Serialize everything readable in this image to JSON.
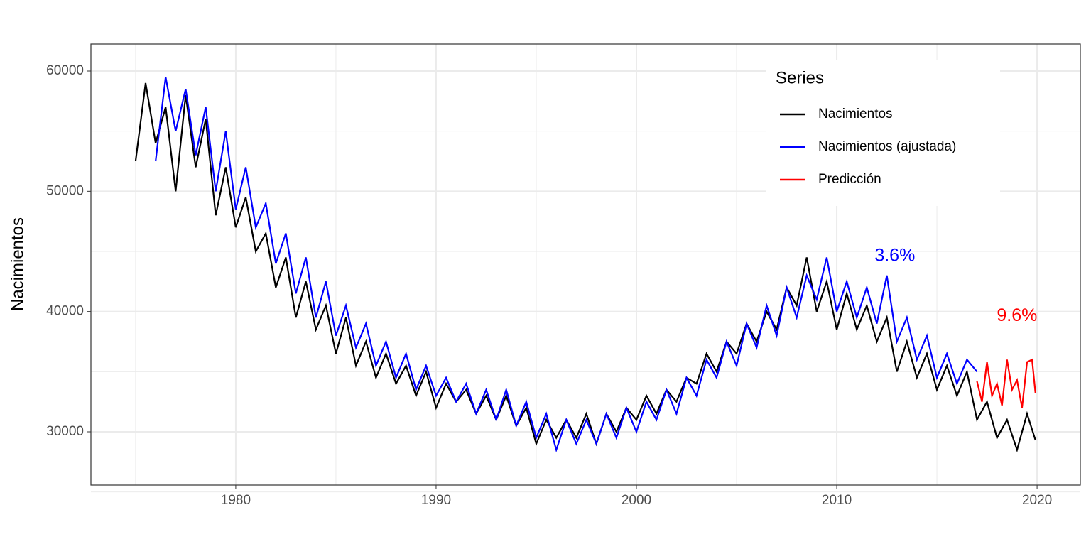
{
  "chart_data": {
    "type": "line",
    "ylabel": "Nacimientos",
    "xlim": [
      1972.77,
      2022.16
    ],
    "xticks": [
      1980,
      1990,
      2000,
      2010,
      2020
    ],
    "ylim": [
      25570,
      62244
    ],
    "yticks": [
      30000,
      40000,
      50000,
      60000
    ],
    "grid": true,
    "legend_title": "Series",
    "legend_position": "top-right",
    "series": [
      {
        "name": "Nacimientos",
        "color": "#000000",
        "x": [
          1975,
          1975.5,
          1976,
          1976.5,
          1977,
          1977.5,
          1978,
          1978.5,
          1979,
          1979.5,
          1980,
          1980.5,
          1981,
          1981.5,
          1982,
          1982.5,
          1983,
          1983.5,
          1984,
          1984.5,
          1985,
          1985.5,
          1986,
          1986.5,
          1987,
          1987.5,
          1988,
          1988.5,
          1989,
          1989.5,
          1990,
          1990.5,
          1991,
          1991.5,
          1992,
          1992.5,
          1993,
          1993.5,
          1994,
          1994.5,
          1995,
          1995.5,
          1996,
          1996.5,
          1997,
          1997.5,
          1998,
          1998.5,
          1999,
          1999.5,
          2000,
          2000.5,
          2001,
          2001.5,
          2002,
          2002.5,
          2003,
          2003.5,
          2004,
          2004.5,
          2005,
          2005.5,
          2006,
          2006.5,
          2007,
          2007.5,
          2008,
          2008.5,
          2009,
          2009.5,
          2010,
          2010.5,
          2011,
          2011.5,
          2012,
          2012.5,
          2013,
          2013.5,
          2014,
          2014.5,
          2015,
          2015.5,
          2016,
          2016.5,
          2017,
          2017.5,
          2018,
          2018.5,
          2019,
          2019.5,
          2019.92
        ],
        "values": [
          52500,
          59000,
          54000,
          57000,
          50000,
          58000,
          52000,
          56000,
          48000,
          52000,
          47000,
          49500,
          45000,
          46500,
          42000,
          44500,
          39500,
          42500,
          38500,
          40500,
          36500,
          39500,
          35500,
          37500,
          34500,
          36500,
          34000,
          35500,
          33000,
          35000,
          32000,
          34000,
          32500,
          33500,
          31500,
          33000,
          31000,
          33000,
          30500,
          32000,
          29000,
          31000,
          29500,
          31000,
          29500,
          31500,
          29000,
          31500,
          30000,
          32000,
          31000,
          33000,
          31500,
          33500,
          32500,
          34500,
          34000,
          36500,
          35000,
          37500,
          36500,
          39000,
          37500,
          40000,
          38500,
          42000,
          40500,
          44500,
          40000,
          42500,
          38500,
          41500,
          38500,
          40500,
          37500,
          39500,
          35000,
          37500,
          34500,
          36500,
          33500,
          35500,
          33000,
          35000,
          31000,
          32500,
          29500,
          31000,
          28500,
          31500,
          29300
        ]
      },
      {
        "name": "Nacimientos (ajustada)",
        "color": "#0000ff",
        "x": [
          1976,
          1976.5,
          1977,
          1977.5,
          1978,
          1978.5,
          1979,
          1979.5,
          1980,
          1980.5,
          1981,
          1981.5,
          1982,
          1982.5,
          1983,
          1983.5,
          1984,
          1984.5,
          1985,
          1985.5,
          1986,
          1986.5,
          1987,
          1987.5,
          1988,
          1988.5,
          1989,
          1989.5,
          1990,
          1990.5,
          1991,
          1991.5,
          1992,
          1992.5,
          1993,
          1993.5,
          1994,
          1994.5,
          1995,
          1995.5,
          1996,
          1996.5,
          1997,
          1997.5,
          1998,
          1998.5,
          1999,
          1999.5,
          2000,
          2000.5,
          2001,
          2001.5,
          2002,
          2002.5,
          2003,
          2003.5,
          2004,
          2004.5,
          2005,
          2005.5,
          2006,
          2006.5,
          2007,
          2007.5,
          2008,
          2008.5,
          2009,
          2009.5,
          2010,
          2010.5,
          2011,
          2011.5,
          2012,
          2012.5,
          2013,
          2013.5,
          2014,
          2014.5,
          2015,
          2015.5,
          2016,
          2016.5,
          2017
        ],
        "values": [
          52500,
          59500,
          55000,
          58500,
          53000,
          57000,
          50000,
          55000,
          48500,
          52000,
          47000,
          49000,
          44000,
          46500,
          41500,
          44500,
          39500,
          42500,
          38000,
          40500,
          37000,
          39000,
          35500,
          37500,
          34500,
          36500,
          33500,
          35500,
          33000,
          34500,
          32500,
          34000,
          31500,
          33500,
          31000,
          33500,
          30500,
          32500,
          29500,
          31500,
          28500,
          31000,
          29000,
          31000,
          29000,
          31500,
          29500,
          32000,
          30000,
          32500,
          31000,
          33500,
          31500,
          34500,
          33000,
          36000,
          34500,
          37500,
          35500,
          39000,
          37000,
          40500,
          38000,
          42000,
          39500,
          43000,
          41000,
          44500,
          40000,
          42500,
          39500,
          42000,
          39000,
          43000,
          37500,
          39500,
          36000,
          38000,
          34500,
          36500,
          34000,
          36000,
          35000
        ]
      },
      {
        "name": "Predicción",
        "color": "#ff0000",
        "x": [
          2017,
          2017.25,
          2017.5,
          2017.75,
          2018,
          2018.25,
          2018.5,
          2018.75,
          2019,
          2019.25,
          2019.5,
          2019.75,
          2019.92
        ],
        "values": [
          34200,
          32500,
          35800,
          33000,
          34000,
          32200,
          36000,
          33500,
          34300,
          32000,
          35800,
          36000,
          33200
        ]
      }
    ],
    "annotations": [
      {
        "text": "3.6%",
        "x": 2012.9,
        "y": 44600,
        "color": "#0000ff"
      },
      {
        "text": "9.6%",
        "x": 2019,
        "y": 39600,
        "color": "#ff0000"
      }
    ]
  }
}
